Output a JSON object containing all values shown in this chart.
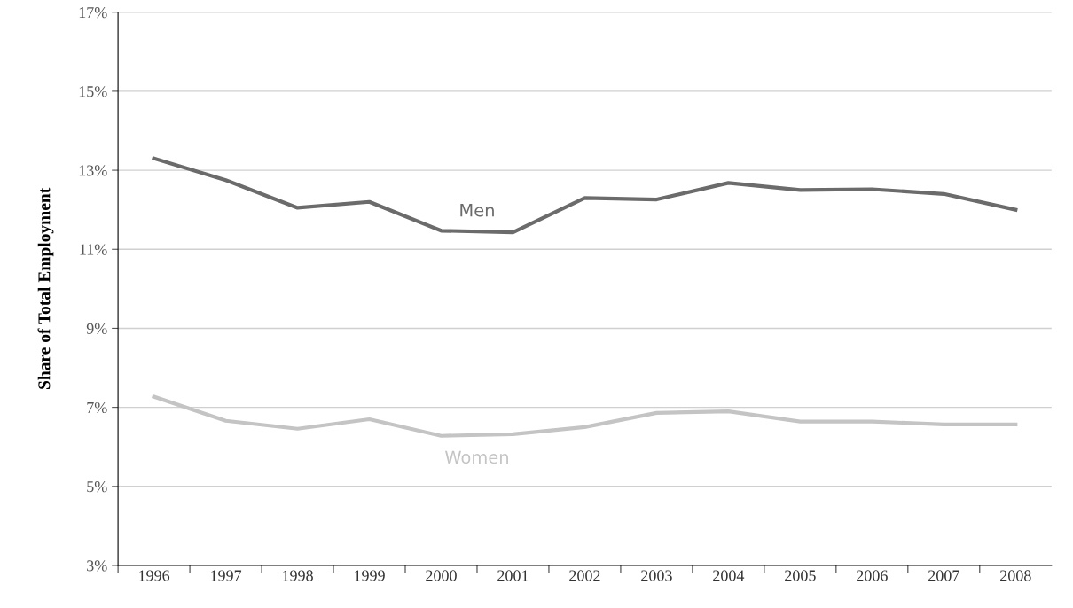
{
  "chart_data": {
    "type": "line",
    "ylabel": "Share of Total Employment",
    "categories": [
      "1996",
      "1997",
      "1998",
      "1999",
      "2000",
      "2001",
      "2002",
      "2003",
      "2004",
      "2005",
      "2006",
      "2007",
      "2008"
    ],
    "series": [
      {
        "name": "Men",
        "color": "#6b6b6b",
        "values": [
          13.3,
          12.75,
          12.05,
          12.2,
          11.47,
          11.43,
          12.3,
          12.26,
          12.68,
          12.5,
          12.52,
          12.4,
          12.0
        ]
      },
      {
        "name": "Women",
        "color": "#c4c4c4",
        "values": [
          7.27,
          6.66,
          6.46,
          6.7,
          6.28,
          6.32,
          6.5,
          6.86,
          6.9,
          6.64,
          6.64,
          6.57,
          6.57
        ]
      }
    ],
    "ylim": [
      3,
      17
    ],
    "yticks": [
      {
        "value": 3,
        "label": "3%"
      },
      {
        "value": 5,
        "label": "5%"
      },
      {
        "value": 7,
        "label": "7%"
      },
      {
        "value": 9,
        "label": "9%"
      },
      {
        "value": 11,
        "label": "11%"
      },
      {
        "value": 13,
        "label": "13%"
      },
      {
        "value": 15,
        "label": "15%"
      },
      {
        "value": 17,
        "label": "17%"
      }
    ],
    "grid": "y",
    "legend": false,
    "marker": "none",
    "line_style": "solid"
  }
}
